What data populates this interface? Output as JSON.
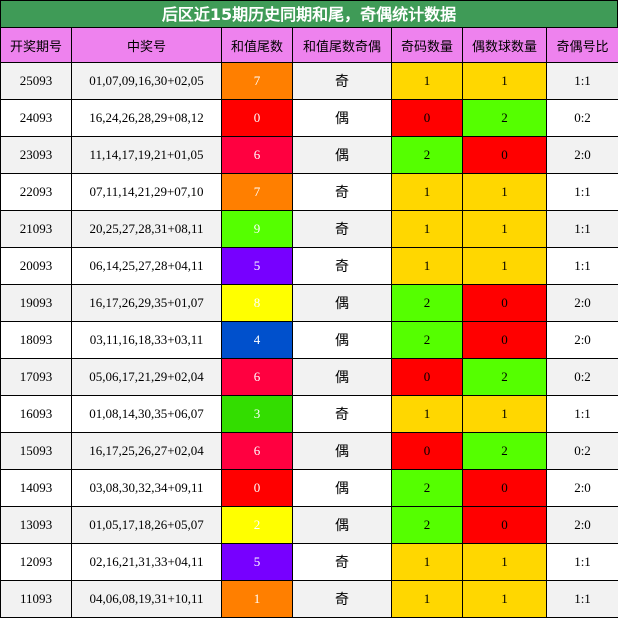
{
  "title": "后区近15期历史同期和尾，奇偶统计数据",
  "headers": [
    "开奖期号",
    "中奖号",
    "和值尾数",
    "和值尾数奇偶",
    "奇码数量",
    "偶数球数量",
    "奇偶号比"
  ],
  "colors": {
    "title_bg": "#3f9b57",
    "header_bg": "#ee82ee",
    "odd_yellow": "#ffd700",
    "green": "#55ff00",
    "red": "#ff0000",
    "tail_0": "#ff0000",
    "tail_1": "#ff7f00",
    "tail_2": "#ffff00",
    "tail_3": "#33dd00",
    "tail_4": "#0050cc",
    "tail_5": "#7700ff",
    "tail_6": "#ff0040",
    "tail_7": "#ff7f00",
    "tail_8": "#ffff00",
    "tail_9": "#55ff00"
  },
  "rows": [
    {
      "period": "25093",
      "numbers": "01,07,09,16,30+02,05",
      "tail": "7",
      "tail_color": "#ff7f00",
      "parity": "奇",
      "odd_count": "1",
      "odd_color": "#ffd700",
      "even_count": "1",
      "even_color": "#ffd700",
      "ratio": "1:1"
    },
    {
      "period": "24093",
      "numbers": "16,24,26,28,29+08,12",
      "tail": "0",
      "tail_color": "#ff0000",
      "parity": "偶",
      "odd_count": "0",
      "odd_color": "#ff0000",
      "even_count": "2",
      "even_color": "#55ff00",
      "ratio": "0:2"
    },
    {
      "period": "23093",
      "numbers": "11,14,17,19,21+01,05",
      "tail": "6",
      "tail_color": "#ff0040",
      "parity": "偶",
      "odd_count": "2",
      "odd_color": "#55ff00",
      "even_count": "0",
      "even_color": "#ff0000",
      "ratio": "2:0"
    },
    {
      "period": "22093",
      "numbers": "07,11,14,21,29+07,10",
      "tail": "7",
      "tail_color": "#ff7f00",
      "parity": "奇",
      "odd_count": "1",
      "odd_color": "#ffd700",
      "even_count": "1",
      "even_color": "#ffd700",
      "ratio": "1:1"
    },
    {
      "period": "21093",
      "numbers": "20,25,27,28,31+08,11",
      "tail": "9",
      "tail_color": "#55ff00",
      "parity": "奇",
      "odd_count": "1",
      "odd_color": "#ffd700",
      "even_count": "1",
      "even_color": "#ffd700",
      "ratio": "1:1"
    },
    {
      "period": "20093",
      "numbers": "06,14,25,27,28+04,11",
      "tail": "5",
      "tail_color": "#7700ff",
      "parity": "奇",
      "odd_count": "1",
      "odd_color": "#ffd700",
      "even_count": "1",
      "even_color": "#ffd700",
      "ratio": "1:1"
    },
    {
      "period": "19093",
      "numbers": "16,17,26,29,35+01,07",
      "tail": "8",
      "tail_color": "#ffff00",
      "parity": "偶",
      "odd_count": "2",
      "odd_color": "#55ff00",
      "even_count": "0",
      "even_color": "#ff0000",
      "ratio": "2:0"
    },
    {
      "period": "18093",
      "numbers": "03,11,16,18,33+03,11",
      "tail": "4",
      "tail_color": "#0050cc",
      "parity": "偶",
      "odd_count": "2",
      "odd_color": "#55ff00",
      "even_count": "0",
      "even_color": "#ff0000",
      "ratio": "2:0"
    },
    {
      "period": "17093",
      "numbers": "05,06,17,21,29+02,04",
      "tail": "6",
      "tail_color": "#ff0040",
      "parity": "偶",
      "odd_count": "0",
      "odd_color": "#ff0000",
      "even_count": "2",
      "even_color": "#55ff00",
      "ratio": "0:2"
    },
    {
      "period": "16093",
      "numbers": "01,08,14,30,35+06,07",
      "tail": "3",
      "tail_color": "#33dd00",
      "parity": "奇",
      "odd_count": "1",
      "odd_color": "#ffd700",
      "even_count": "1",
      "even_color": "#ffd700",
      "ratio": "1:1"
    },
    {
      "period": "15093",
      "numbers": "16,17,25,26,27+02,04",
      "tail": "6",
      "tail_color": "#ff0040",
      "parity": "偶",
      "odd_count": "0",
      "odd_color": "#ff0000",
      "even_count": "2",
      "even_color": "#55ff00",
      "ratio": "0:2"
    },
    {
      "period": "14093",
      "numbers": "03,08,30,32,34+09,11",
      "tail": "0",
      "tail_color": "#ff0000",
      "parity": "偶",
      "odd_count": "2",
      "odd_color": "#55ff00",
      "even_count": "0",
      "even_color": "#ff0000",
      "ratio": "2:0"
    },
    {
      "period": "13093",
      "numbers": "01,05,17,18,26+05,07",
      "tail": "2",
      "tail_color": "#ffff00",
      "parity": "偶",
      "odd_count": "2",
      "odd_color": "#55ff00",
      "even_count": "0",
      "even_color": "#ff0000",
      "ratio": "2:0"
    },
    {
      "period": "12093",
      "numbers": "02,16,21,31,33+04,11",
      "tail": "5",
      "tail_color": "#7700ff",
      "parity": "奇",
      "odd_count": "1",
      "odd_color": "#ffd700",
      "even_count": "1",
      "even_color": "#ffd700",
      "ratio": "1:1"
    },
    {
      "period": "11093",
      "numbers": "04,06,08,19,31+10,11",
      "tail": "1",
      "tail_color": "#ff7f00",
      "parity": "奇",
      "odd_count": "1",
      "odd_color": "#ffd700",
      "even_count": "1",
      "even_color": "#ffd700",
      "ratio": "1:1"
    }
  ]
}
